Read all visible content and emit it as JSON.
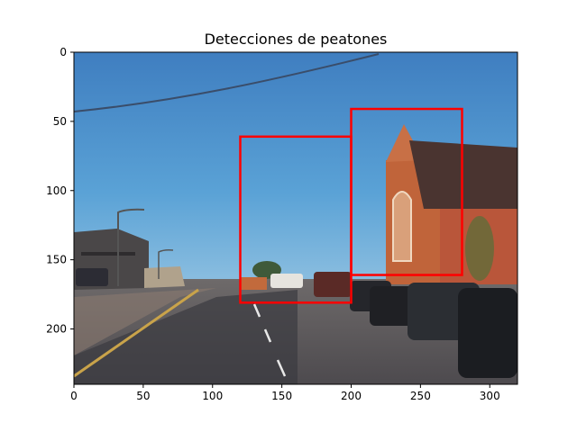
{
  "chart_data": {
    "type": "image",
    "title": "Detecciones de peatones",
    "image_description": "Street scene: road with parked cars on the right, church with steeple on the right, buildings on the left, blue sky, overhead wire",
    "xlim": [
      0,
      320
    ],
    "ylim": [
      240,
      0
    ],
    "x_ticks": [
      0,
      50,
      100,
      150,
      200,
      250,
      300
    ],
    "y_ticks": [
      0,
      50,
      100,
      150,
      200
    ],
    "x_tick_labels": [
      "0",
      "50",
      "100",
      "150",
      "200",
      "250",
      "300"
    ],
    "y_tick_labels": [
      "0",
      "50",
      "100",
      "150",
      "200"
    ],
    "box_color": "#ff0000",
    "boxes": [
      {
        "x0": 120,
        "y0": 61,
        "x1": 200,
        "y1": 181
      },
      {
        "x0": 200,
        "y0": 41,
        "x1": 280,
        "y1": 161
      }
    ]
  }
}
